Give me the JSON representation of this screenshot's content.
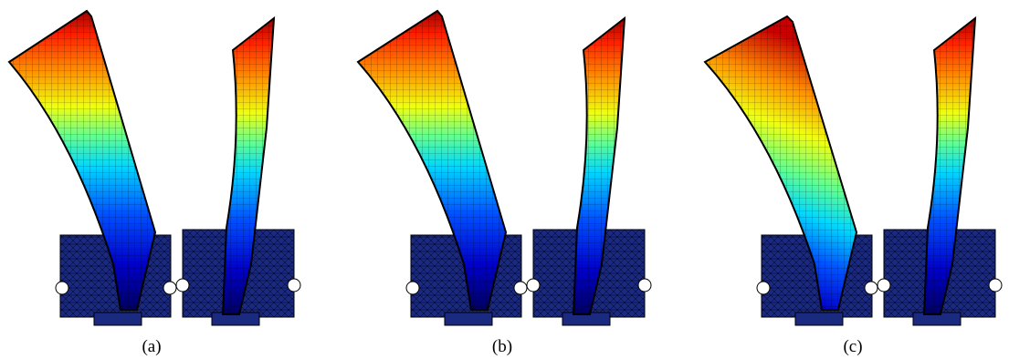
{
  "panels": [
    {
      "caption": "(a)"
    },
    {
      "caption": "(b)"
    },
    {
      "caption": "(c)"
    }
  ],
  "colormap": [
    "#00007f",
    "#0000ff",
    "#007fff",
    "#00ffff",
    "#7fff7f",
    "#ffff00",
    "#ff7f00",
    "#ff0000",
    "#7f0000"
  ],
  "base_color": "#1a2a80",
  "mesh_color": "#000000"
}
